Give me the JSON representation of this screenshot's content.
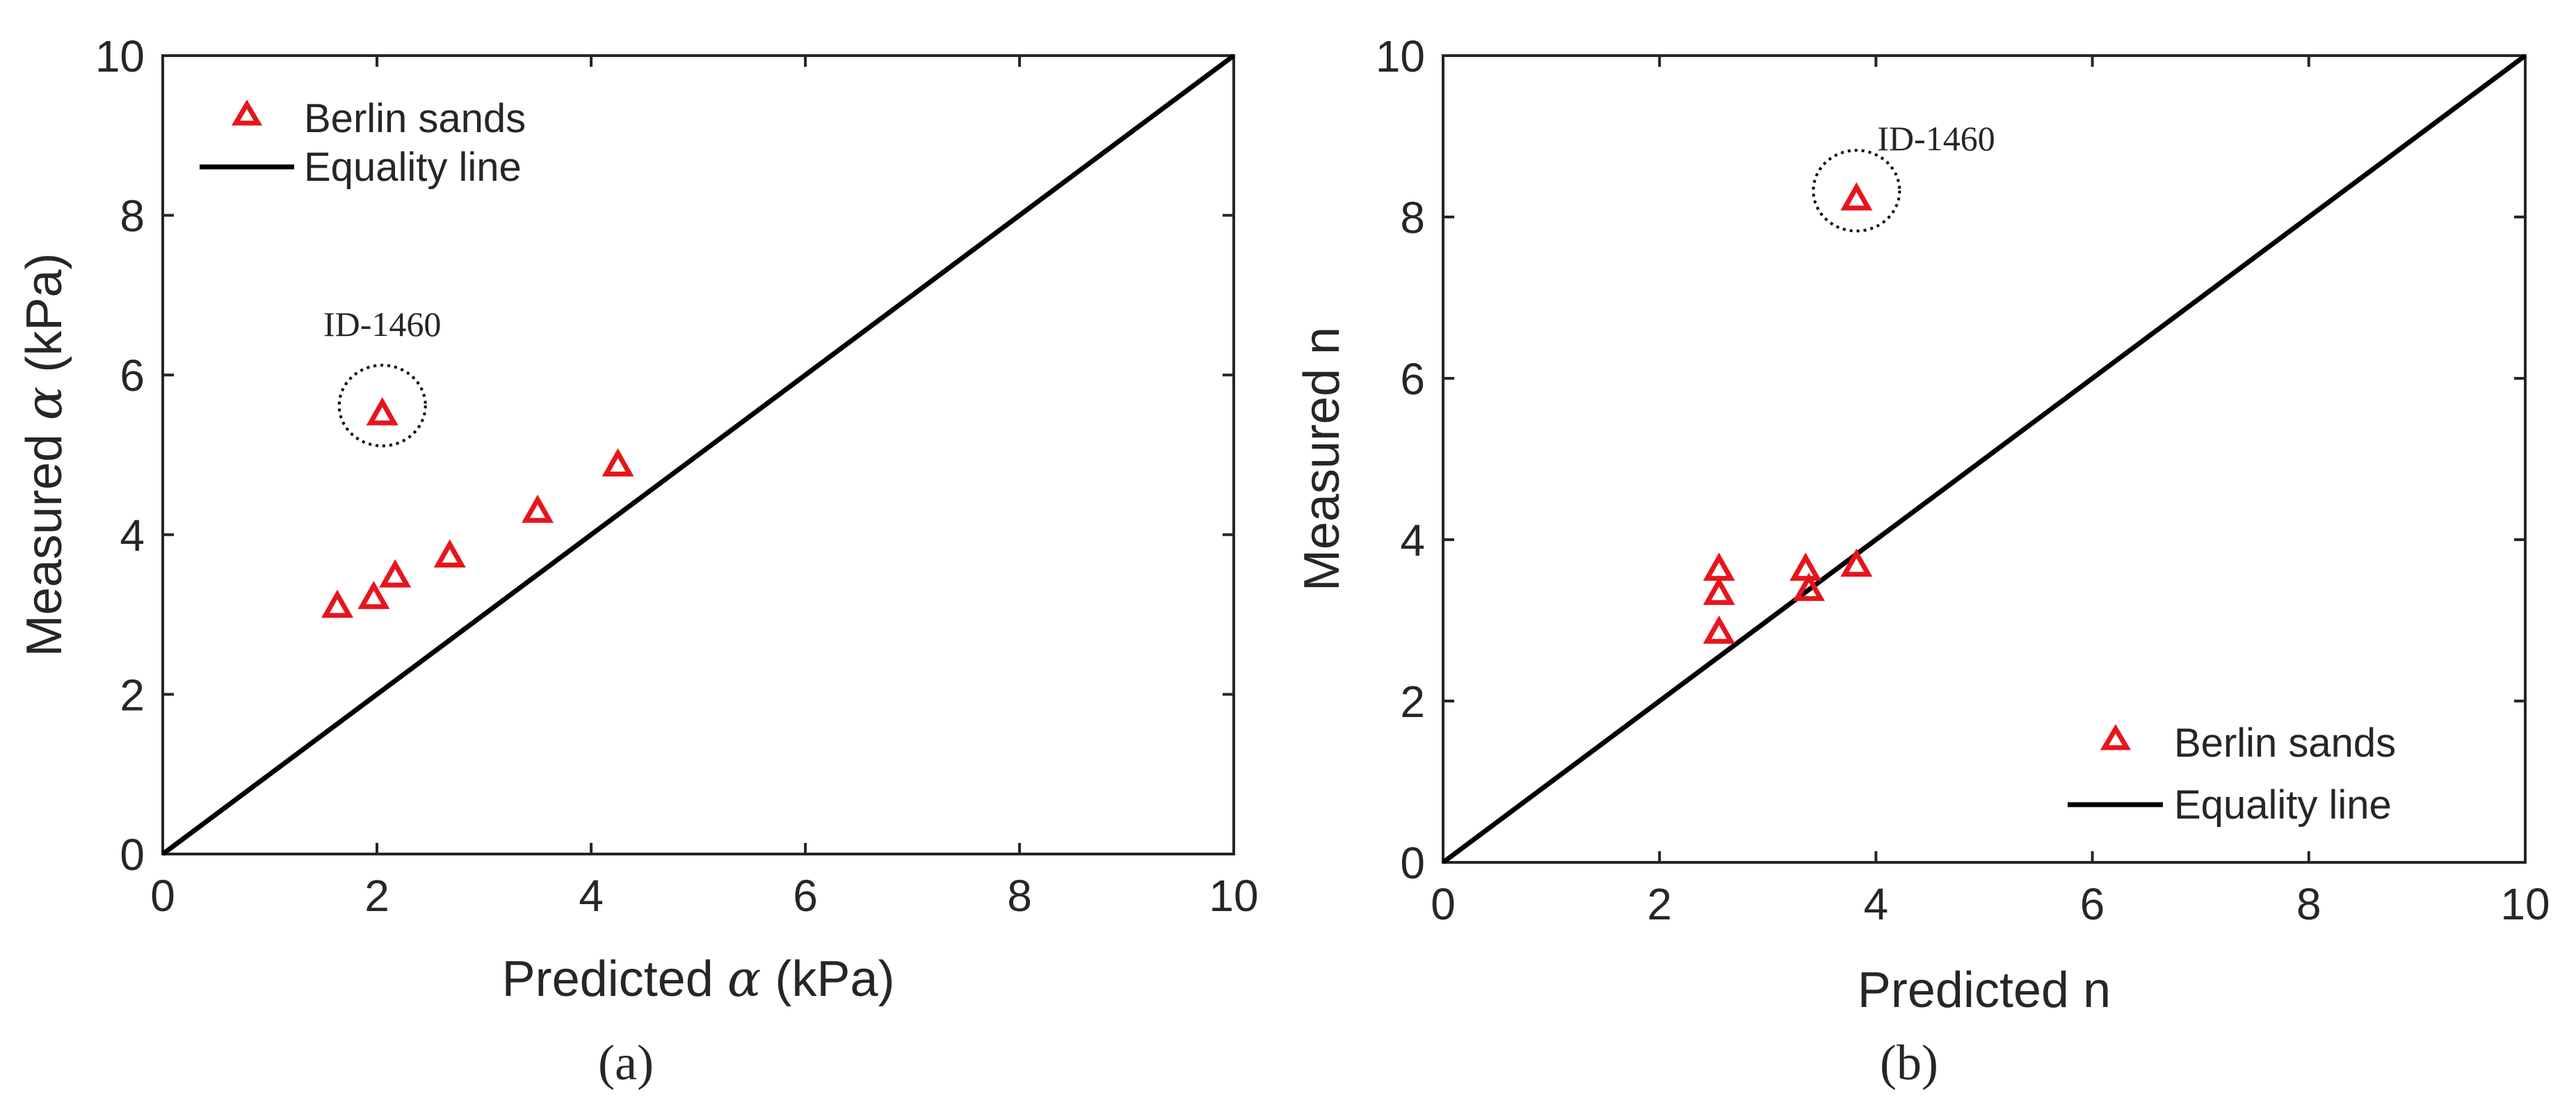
{
  "chart_data": [
    {
      "type": "scatter",
      "caption": "(a)",
      "xlabel_prefix": "Predicted ",
      "xlabel_symbol": "α",
      "xlabel_suffix": " (kPa)",
      "ylabel_prefix": "Measured ",
      "ylabel_symbol": "α",
      "ylabel_suffix": " (kPa)",
      "xlim": [
        0,
        10
      ],
      "ylim": [
        0,
        10
      ],
      "xticks": [
        "0",
        "2",
        "4",
        "6",
        "8",
        "10"
      ],
      "yticks": [
        "0",
        "2",
        "4",
        "6",
        "8",
        "10"
      ],
      "grid": false,
      "legend_position": "top-left",
      "series": [
        {
          "name": "Berlin sands",
          "marker": "triangle",
          "color": "#e8141b",
          "points": [
            {
              "x": 1.63,
              "y": 3.12
            },
            {
              "x": 1.97,
              "y": 3.23
            },
            {
              "x": 2.17,
              "y": 3.5
            },
            {
              "x": 2.68,
              "y": 3.75
            },
            {
              "x": 3.5,
              "y": 4.31
            },
            {
              "x": 4.25,
              "y": 4.89
            },
            {
              "x": 2.05,
              "y": 5.53
            }
          ]
        },
        {
          "name": "Equality line",
          "type": "line",
          "color": "#000000",
          "points": [
            {
              "x": 0,
              "y": 0
            },
            {
              "x": 10,
              "y": 10
            }
          ]
        }
      ],
      "annotations": [
        {
          "text": "ID-1460",
          "x": 2.05,
          "y": 5.53
        }
      ]
    },
    {
      "type": "scatter",
      "caption": "(b)",
      "xlabel": "Predicted n",
      "ylabel": "Measured n",
      "xlim": [
        0,
        10
      ],
      "ylim": [
        0,
        10
      ],
      "xticks": [
        "0",
        "2",
        "4",
        "6",
        "8",
        "10"
      ],
      "yticks": [
        "0",
        "2",
        "4",
        "6",
        "8",
        "10"
      ],
      "grid": false,
      "legend_position": "bottom-right",
      "series": [
        {
          "name": "Berlin sands",
          "marker": "triangle",
          "color": "#e8141b",
          "points": [
            {
              "x": 2.55,
              "y": 3.65
            },
            {
              "x": 2.55,
              "y": 3.35
            },
            {
              "x": 2.55,
              "y": 2.87
            },
            {
              "x": 3.35,
              "y": 3.65
            },
            {
              "x": 3.38,
              "y": 3.4
            },
            {
              "x": 3.82,
              "y": 3.7
            },
            {
              "x": 3.82,
              "y": 8.24
            }
          ]
        },
        {
          "name": "Equality line",
          "type": "line",
          "color": "#000000",
          "points": [
            {
              "x": 0,
              "y": 0
            },
            {
              "x": 10,
              "y": 10
            }
          ]
        }
      ],
      "annotations": [
        {
          "text": "ID-1460",
          "x": 3.82,
          "y": 8.24
        }
      ]
    }
  ]
}
